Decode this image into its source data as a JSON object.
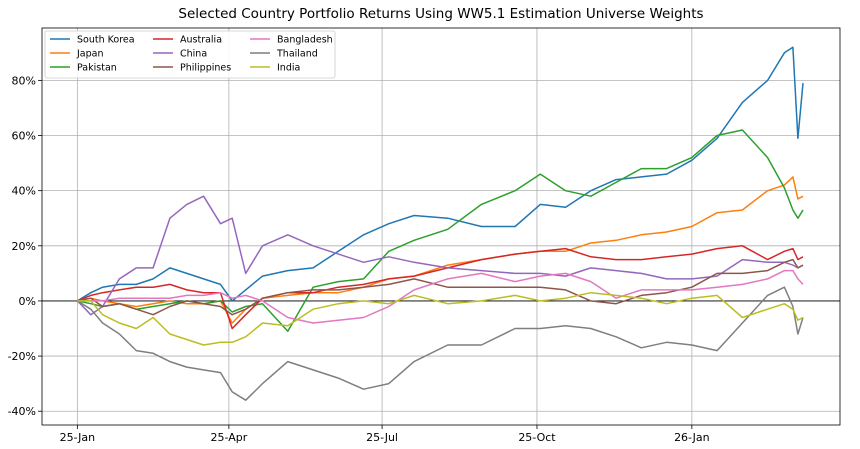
{
  "chart_data": {
    "type": "line",
    "title": "Selected Country Portfolio Returns Using WW5.1 Estimation Universe Weights",
    "xlabel": "",
    "ylabel": "",
    "x_unit": "days since 25-Jan",
    "xlim": [
      -21,
      453
    ],
    "ylim": [
      -45,
      99
    ],
    "grid": true,
    "legend_position": "top-left",
    "x_ticks": [
      {
        "value": 0,
        "label": "25-Jan"
      },
      {
        "value": 90,
        "label": "25-Apr"
      },
      {
        "value": 181,
        "label": "25-Jul"
      },
      {
        "value": 273,
        "label": "25-Oct"
      },
      {
        "value": 365,
        "label": "26-Jan"
      }
    ],
    "y_ticks": [
      {
        "value": -40,
        "label": "-40%"
      },
      {
        "value": -20,
        "label": "-20%"
      },
      {
        "value": 0,
        "label": "0%"
      },
      {
        "value": 20,
        "label": "20%"
      },
      {
        "value": 40,
        "label": "40%"
      },
      {
        "value": 60,
        "label": "60%"
      },
      {
        "value": 80,
        "label": "80%"
      }
    ],
    "x": [
      0,
      8,
      15,
      25,
      35,
      45,
      55,
      65,
      75,
      85,
      92,
      100,
      110,
      125,
      140,
      155,
      170,
      185,
      200,
      220,
      240,
      260,
      275,
      290,
      305,
      320,
      335,
      350,
      365,
      380,
      395,
      410,
      420,
      425,
      428,
      431
    ],
    "series": [
      {
        "name": "South Korea",
        "color": "#1f77b4",
        "values": [
          0,
          3,
          5,
          6,
          6,
          8,
          12,
          10,
          8,
          6,
          0,
          4,
          9,
          11,
          12,
          18,
          24,
          28,
          31,
          30,
          27,
          27,
          35,
          34,
          40,
          44,
          45,
          46,
          51,
          59,
          72,
          80,
          90,
          92,
          59,
          79
        ]
      },
      {
        "name": "Japan",
        "color": "#ff7f0e",
        "values": [
          0,
          1,
          0,
          -1,
          -2,
          -1,
          0,
          -1,
          -1,
          0,
          -8,
          -3,
          1,
          2,
          3,
          3,
          5,
          8,
          9,
          13,
          15,
          17,
          18,
          18,
          21,
          22,
          24,
          25,
          27,
          32,
          33,
          40,
          42,
          45,
          37,
          38
        ]
      },
      {
        "name": "Pakistan",
        "color": "#2ca02c",
        "values": [
          0,
          -1,
          -2,
          -1,
          -3,
          -2,
          -1,
          0,
          -1,
          0,
          -4,
          -2,
          -1,
          -11,
          5,
          7,
          8,
          18,
          22,
          26,
          35,
          40,
          46,
          40,
          38,
          43,
          48,
          48,
          52,
          60,
          62,
          52,
          41,
          33,
          30,
          33
        ]
      },
      {
        "name": "Australia",
        "color": "#d62728",
        "values": [
          0,
          2,
          3,
          4,
          5,
          5,
          6,
          4,
          3,
          3,
          -10,
          -5,
          1,
          3,
          3,
          5,
          6,
          8,
          9,
          12,
          15,
          17,
          18,
          19,
          16,
          15,
          15,
          16,
          17,
          19,
          20,
          15,
          18,
          19,
          15,
          16
        ]
      },
      {
        "name": "China",
        "color": "#9467bd",
        "values": [
          0,
          -5,
          -2,
          8,
          12,
          12,
          30,
          35,
          38,
          28,
          30,
          10,
          20,
          24,
          20,
          17,
          14,
          16,
          14,
          12,
          11,
          10,
          10,
          9,
          12,
          11,
          10,
          8,
          8,
          9,
          15,
          14,
          14,
          13,
          12,
          13
        ]
      },
      {
        "name": "Philippines",
        "color": "#8c564b",
        "values": [
          0,
          1,
          -2,
          -1,
          -3,
          -5,
          -2,
          0,
          -1,
          -2,
          -5,
          -3,
          1,
          3,
          4,
          4,
          5,
          6,
          8,
          5,
          5,
          5,
          5,
          4,
          0,
          -1,
          2,
          3,
          5,
          10,
          10,
          11,
          14,
          15,
          12,
          13
        ]
      },
      {
        "name": "Bangladesh",
        "color": "#e377c2",
        "values": [
          0,
          0,
          0,
          1,
          1,
          1,
          1,
          2,
          2,
          3,
          1,
          2,
          0,
          -6,
          -8,
          -7,
          -6,
          -2,
          4,
          8,
          10,
          7,
          9,
          10,
          7,
          1,
          4,
          4,
          4,
          5,
          6,
          8,
          11,
          11,
          8,
          6
        ]
      },
      {
        "name": "Thailand",
        "color": "#7f7f7f",
        "values": [
          0,
          -3,
          -8,
          -12,
          -18,
          -19,
          -22,
          -24,
          -25,
          -26,
          -33,
          -36,
          -30,
          -22,
          -25,
          -28,
          -32,
          -30,
          -22,
          -16,
          -16,
          -10,
          -10,
          -9,
          -10,
          -13,
          -17,
          -15,
          -16,
          -18,
          -8,
          2,
          5,
          -2,
          -12,
          -6
        ]
      },
      {
        "name": "India",
        "color": "#bcbd22",
        "values": [
          0,
          0,
          -5,
          -8,
          -10,
          -6,
          -12,
          -14,
          -16,
          -15,
          -15,
          -13,
          -8,
          -9,
          -3,
          -1,
          0,
          -1,
          2,
          -1,
          0,
          2,
          0,
          1,
          3,
          2,
          1,
          -1,
          1,
          2,
          -6,
          -3,
          -1,
          -3,
          -7,
          -6
        ]
      }
    ]
  }
}
